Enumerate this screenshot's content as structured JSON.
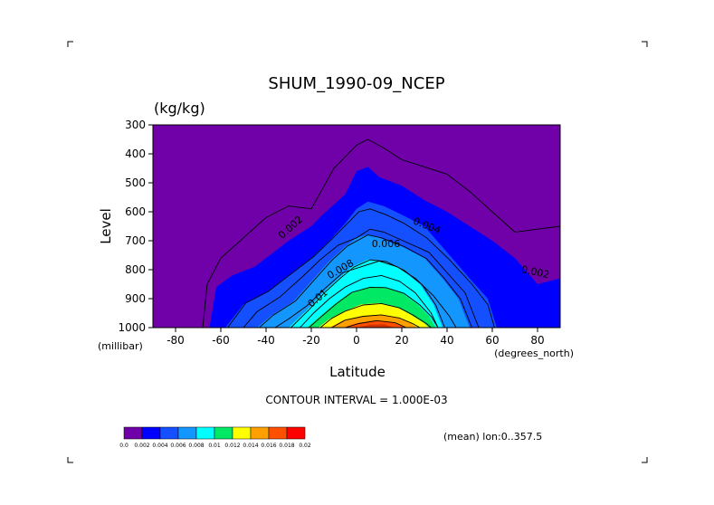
{
  "chart_data": {
    "type": "heatmap",
    "subtype": "filled-contour",
    "title": "SHUM_1990-09_NCEP",
    "units": "(kg/kg)",
    "xlabel": "Latitude",
    "xlabel_units": "(degrees_north)",
    "ylabel": "Level",
    "ylabel_units": "(millibar)",
    "xlim": [
      -90,
      90
    ],
    "ylim": [
      1000,
      300
    ],
    "y_inverted": true,
    "xticks": [
      -80,
      -60,
      -40,
      -20,
      0,
      20,
      40,
      60,
      80
    ],
    "xtick_labels": [
      "-80",
      "-60",
      "-40",
      "-20",
      "0",
      "20",
      "40",
      "60",
      "80"
    ],
    "yticks": [
      300,
      400,
      500,
      600,
      700,
      800,
      900,
      1000
    ],
    "ytick_labels": [
      "300",
      "400",
      "500",
      "600",
      "700",
      "800",
      "900",
      "1000"
    ],
    "contour_interval_label": "CONTOUR INTERVAL = 1.000E-03",
    "contour_interval": 0.001,
    "footnote": "(mean) lon:0..357.5",
    "colorbar": {
      "levels": [
        0,
        0.002,
        0.004,
        0.006,
        0.008,
        0.01,
        0.012,
        0.014,
        0.016,
        0.018,
        0.02
      ],
      "labels": [
        "0.0",
        "0.002",
        "0.004",
        "0.006",
        "0.008",
        "0.01",
        "0.012",
        "0.014",
        "0.016",
        "0.018",
        "0.02"
      ],
      "colors": [
        "#7000a8",
        "#0000ff",
        "#1450ff",
        "#1496ff",
        "#00ffff",
        "#00e864",
        "#ffff00",
        "#ffa000",
        "#ff5000",
        "#ff0000"
      ]
    },
    "filled_regions": [
      {
        "lower": 0.002,
        "color": "#0000ff",
        "points": [
          [
            -65,
            1000
          ],
          [
            -62,
            860
          ],
          [
            -55,
            820
          ],
          [
            -45,
            790
          ],
          [
            -40,
            760
          ],
          [
            -30,
            700
          ],
          [
            -20,
            650
          ],
          [
            -15,
            610
          ],
          [
            -5,
            540
          ],
          [
            0,
            460
          ],
          [
            5,
            445
          ],
          [
            10,
            480
          ],
          [
            20,
            510
          ],
          [
            30,
            560
          ],
          [
            40,
            600
          ],
          [
            50,
            650
          ],
          [
            60,
            700
          ],
          [
            70,
            760
          ],
          [
            80,
            850
          ],
          [
            90,
            830
          ],
          [
            90,
            1000
          ]
        ]
      },
      {
        "lower": 0.004,
        "color": "#1450ff",
        "points": [
          [
            -58,
            1000
          ],
          [
            -50,
            920
          ],
          [
            -40,
            880
          ],
          [
            -30,
            820
          ],
          [
            -20,
            760
          ],
          [
            -12,
            700
          ],
          [
            -5,
            640
          ],
          [
            0,
            590
          ],
          [
            5,
            565
          ],
          [
            12,
            580
          ],
          [
            20,
            610
          ],
          [
            30,
            650
          ],
          [
            40,
            740
          ],
          [
            50,
            830
          ],
          [
            58,
            900
          ],
          [
            62,
            1000
          ]
        ]
      },
      {
        "lower": 0.006,
        "color": "#1496ff",
        "points": [
          [
            -44,
            1000
          ],
          [
            -38,
            960
          ],
          [
            -28,
            910
          ],
          [
            -20,
            840
          ],
          [
            -12,
            770
          ],
          [
            -5,
            720
          ],
          [
            0,
            690
          ],
          [
            5,
            680
          ],
          [
            10,
            690
          ],
          [
            20,
            720
          ],
          [
            30,
            760
          ],
          [
            38,
            830
          ],
          [
            45,
            900
          ],
          [
            50,
            1000
          ]
        ]
      },
      {
        "lower": 0.008,
        "color": "#00ffff",
        "points": [
          [
            -30,
            1000
          ],
          [
            -22,
            940
          ],
          [
            -15,
            880
          ],
          [
            -8,
            830
          ],
          [
            -2,
            790
          ],
          [
            5,
            765
          ],
          [
            12,
            770
          ],
          [
            20,
            800
          ],
          [
            28,
            850
          ],
          [
            34,
            920
          ],
          [
            38,
            1000
          ]
        ]
      },
      {
        "lower": 0.01,
        "color": "#00e864",
        "points": [
          [
            -22,
            1000
          ],
          [
            -16,
            960
          ],
          [
            -10,
            920
          ],
          [
            -3,
            880
          ],
          [
            5,
            860
          ],
          [
            12,
            860
          ],
          [
            20,
            880
          ],
          [
            27,
            920
          ],
          [
            32,
            960
          ],
          [
            35,
            1000
          ]
        ]
      },
      {
        "lower": 0.012,
        "color": "#ffff00",
        "points": [
          [
            -17,
            1000
          ],
          [
            -12,
            970
          ],
          [
            -6,
            945
          ],
          [
            2,
            920
          ],
          [
            10,
            915
          ],
          [
            18,
            930
          ],
          [
            24,
            955
          ],
          [
            30,
            985
          ],
          [
            32,
            1000
          ]
        ]
      },
      {
        "lower": 0.014,
        "color": "#ffa000",
        "points": [
          [
            -12,
            1000
          ],
          [
            -6,
            975
          ],
          [
            2,
            960
          ],
          [
            10,
            955
          ],
          [
            18,
            965
          ],
          [
            24,
            985
          ],
          [
            27,
            1000
          ]
        ]
      },
      {
        "lower": 0.016,
        "color": "#ff5000",
        "points": [
          [
            -6,
            1000
          ],
          [
            0,
            985
          ],
          [
            8,
            975
          ],
          [
            16,
            982
          ],
          [
            22,
            1000
          ]
        ]
      },
      {
        "lower": 0.018,
        "color": "#d23200",
        "points": [
          [
            0,
            1000
          ],
          [
            6,
            990
          ],
          [
            12,
            988
          ],
          [
            17,
            1000
          ]
        ]
      }
    ],
    "contour_lines": [
      {
        "level": 0.002,
        "points": [
          [
            -68,
            1000
          ],
          [
            -66,
            850
          ],
          [
            -60,
            760
          ],
          [
            -50,
            690
          ],
          [
            -40,
            620
          ],
          [
            -30,
            580
          ],
          [
            -20,
            590
          ],
          [
            -10,
            450
          ],
          [
            0,
            370
          ],
          [
            5,
            350
          ],
          [
            12,
            380
          ],
          [
            20,
            420
          ],
          [
            30,
            445
          ],
          [
            40,
            470
          ],
          [
            50,
            530
          ],
          [
            60,
            600
          ],
          [
            70,
            670
          ],
          [
            80,
            660
          ],
          [
            90,
            650
          ]
        ]
      },
      {
        "level": 0.004,
        "points": [
          [
            -57,
            1000
          ],
          [
            -49,
            915
          ],
          [
            -39,
            875
          ],
          [
            -29,
            815
          ],
          [
            -19,
            755
          ],
          [
            -11,
            695
          ],
          [
            -4,
            640
          ],
          [
            1,
            600
          ],
          [
            6,
            590
          ],
          [
            13,
            610
          ],
          [
            21,
            640
          ],
          [
            31,
            690
          ],
          [
            41,
            765
          ],
          [
            51,
            850
          ],
          [
            58,
            920
          ],
          [
            61,
            1000
          ]
        ]
      },
      {
        "level": 0.005,
        "points": [
          [
            -50,
            1000
          ],
          [
            -44,
            945
          ],
          [
            -34,
            895
          ],
          [
            -24,
            825
          ],
          [
            -16,
            765
          ],
          [
            -8,
            715
          ],
          [
            0,
            690
          ],
          [
            6,
            660
          ],
          [
            12,
            670
          ],
          [
            22,
            705
          ],
          [
            32,
            740
          ],
          [
            40,
            810
          ],
          [
            48,
            880
          ],
          [
            54,
            1000
          ]
        ]
      },
      {
        "level": 0.006,
        "points": [
          [
            -43,
            1000
          ],
          [
            -37,
            958
          ],
          [
            -27,
            908
          ],
          [
            -19,
            838
          ],
          [
            -11,
            768
          ],
          [
            -4,
            718
          ],
          [
            5,
            680
          ],
          [
            11,
            690
          ],
          [
            21,
            720
          ],
          [
            31,
            762
          ],
          [
            39,
            832
          ],
          [
            46,
            902
          ],
          [
            51,
            1000
          ]
        ]
      },
      {
        "level": 0.007,
        "points": [
          [
            -36,
            1000
          ],
          [
            -30,
            970
          ],
          [
            -22,
            925
          ],
          [
            -14,
            865
          ],
          [
            -6,
            810
          ],
          [
            2,
            790
          ],
          [
            10,
            770
          ],
          [
            18,
            790
          ],
          [
            26,
            830
          ],
          [
            34,
            890
          ],
          [
            41,
            960
          ],
          [
            44,
            1000
          ]
        ]
      },
      {
        "level": 0.008,
        "points": [
          [
            -29,
            1000
          ],
          [
            -21,
            938
          ],
          [
            -14,
            878
          ],
          [
            -7,
            828
          ],
          [
            -1,
            790
          ],
          [
            6,
            766
          ],
          [
            13,
            772
          ],
          [
            21,
            802
          ],
          [
            29,
            852
          ],
          [
            35,
            922
          ],
          [
            39,
            1000
          ]
        ]
      },
      {
        "level": 0.009,
        "points": [
          [
            -25,
            1000
          ],
          [
            -19,
            950
          ],
          [
            -12,
            900
          ],
          [
            -5,
            860
          ],
          [
            3,
            830
          ],
          [
            11,
            820
          ],
          [
            19,
            840
          ],
          [
            26,
            880
          ],
          [
            33,
            950
          ],
          [
            36,
            1000
          ]
        ]
      },
      {
        "level": 0.01,
        "points": [
          [
            -21,
            1000
          ],
          [
            -15,
            958
          ],
          [
            -9,
            918
          ],
          [
            -2,
            878
          ],
          [
            6,
            861
          ],
          [
            13,
            862
          ],
          [
            21,
            882
          ],
          [
            28,
            922
          ],
          [
            33,
            962
          ],
          [
            36,
            1000
          ]
        ]
      },
      {
        "level": 0.012,
        "points": [
          [
            -16,
            1000
          ],
          [
            -11,
            968
          ],
          [
            -5,
            943
          ],
          [
            3,
            922
          ],
          [
            11,
            917
          ],
          [
            19,
            932
          ],
          [
            25,
            957
          ],
          [
            31,
            987
          ],
          [
            33,
            1000
          ]
        ]
      },
      {
        "level": 0.014,
        "points": [
          [
            -11,
            1000
          ],
          [
            -5,
            974
          ],
          [
            3,
            961
          ],
          [
            11,
            956
          ],
          [
            19,
            967
          ],
          [
            25,
            987
          ],
          [
            28,
            1000
          ]
        ]
      },
      {
        "level": 0.016,
        "points": [
          [
            -5,
            1000
          ],
          [
            1,
            986
          ],
          [
            9,
            976
          ],
          [
            17,
            983
          ],
          [
            22,
            1000
          ]
        ]
      }
    ],
    "contour_labels": [
      {
        "text": "0.002",
        "x": -29,
        "y": 655,
        "angle": -42
      },
      {
        "text": "0.004",
        "x": 31,
        "y": 650,
        "angle": 22
      },
      {
        "text": "0.006",
        "x": 13,
        "y": 712,
        "angle": 0
      },
      {
        "text": "0.008",
        "x": -7,
        "y": 800,
        "angle": -30
      },
      {
        "text": "0.01",
        "x": -17,
        "y": 900,
        "angle": -40
      },
      {
        "text": "0.002",
        "x": 79,
        "y": 810,
        "angle": 12
      }
    ]
  }
}
